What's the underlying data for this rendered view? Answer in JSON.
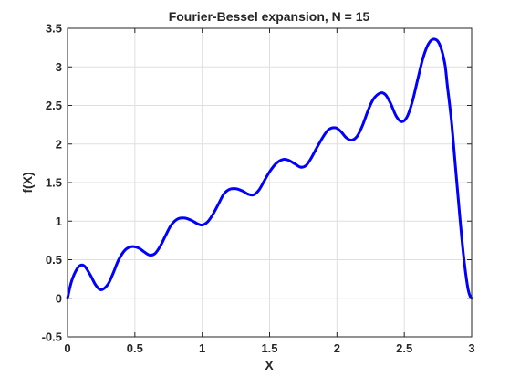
{
  "chart_data": {
    "type": "line",
    "title": "Fourier-Bessel expansion, N = 15",
    "xlabel": "X",
    "ylabel": "f(X)",
    "xlim": [
      0,
      3
    ],
    "ylim": [
      -0.5,
      3.5
    ],
    "grid": true,
    "xticks": [
      0,
      0.5,
      1,
      1.5,
      2,
      2.5,
      3
    ],
    "xtick_labels": [
      "0",
      "0.5",
      "1",
      "1.5",
      "2",
      "2.5",
      "3"
    ],
    "yticks": [
      -0.5,
      0,
      0.5,
      1,
      1.5,
      2,
      2.5,
      3,
      3.5
    ],
    "ytick_labels": [
      "-0.5",
      "0",
      "0.5",
      "1",
      "1.5",
      "2",
      "2.5",
      "3",
      "3.5"
    ],
    "series": [
      {
        "name": "f(X)",
        "color": "#0000ff",
        "x": [
          0,
          0.03,
          0.07,
          0.1,
          0.13,
          0.17,
          0.21,
          0.25,
          0.3,
          0.34,
          0.38,
          0.43,
          0.48,
          0.53,
          0.57,
          0.61,
          0.65,
          0.69,
          0.73,
          0.77,
          0.82,
          0.87,
          0.92,
          0.96,
          1.0,
          1.04,
          1.08,
          1.12,
          1.16,
          1.2,
          1.25,
          1.3,
          1.34,
          1.38,
          1.42,
          1.46,
          1.5,
          1.55,
          1.6,
          1.64,
          1.69,
          1.73,
          1.77,
          1.81,
          1.85,
          1.9,
          1.94,
          1.99,
          2.03,
          2.07,
          2.11,
          2.15,
          2.19,
          2.23,
          2.27,
          2.32,
          2.36,
          2.4,
          2.44,
          2.48,
          2.52,
          2.56,
          2.6,
          2.64,
          2.68,
          2.72,
          2.76,
          2.8,
          2.82,
          2.85,
          2.88,
          2.91,
          2.94,
          2.97,
          2.99,
          3.0
        ],
        "y": [
          0.0,
          0.22,
          0.38,
          0.43,
          0.41,
          0.3,
          0.17,
          0.11,
          0.18,
          0.33,
          0.5,
          0.63,
          0.67,
          0.65,
          0.6,
          0.56,
          0.58,
          0.68,
          0.82,
          0.95,
          1.03,
          1.04,
          1.01,
          0.97,
          0.95,
          0.99,
          1.09,
          1.22,
          1.35,
          1.41,
          1.42,
          1.39,
          1.35,
          1.34,
          1.4,
          1.52,
          1.64,
          1.75,
          1.8,
          1.79,
          1.74,
          1.7,
          1.72,
          1.82,
          1.95,
          2.1,
          2.19,
          2.21,
          2.16,
          2.08,
          2.05,
          2.1,
          2.24,
          2.43,
          2.58,
          2.66,
          2.64,
          2.52,
          2.36,
          2.29,
          2.35,
          2.55,
          2.84,
          3.12,
          3.3,
          3.36,
          3.3,
          3.05,
          2.75,
          2.3,
          1.7,
          1.1,
          0.55,
          0.15,
          0.02,
          0.0
        ]
      }
    ]
  }
}
